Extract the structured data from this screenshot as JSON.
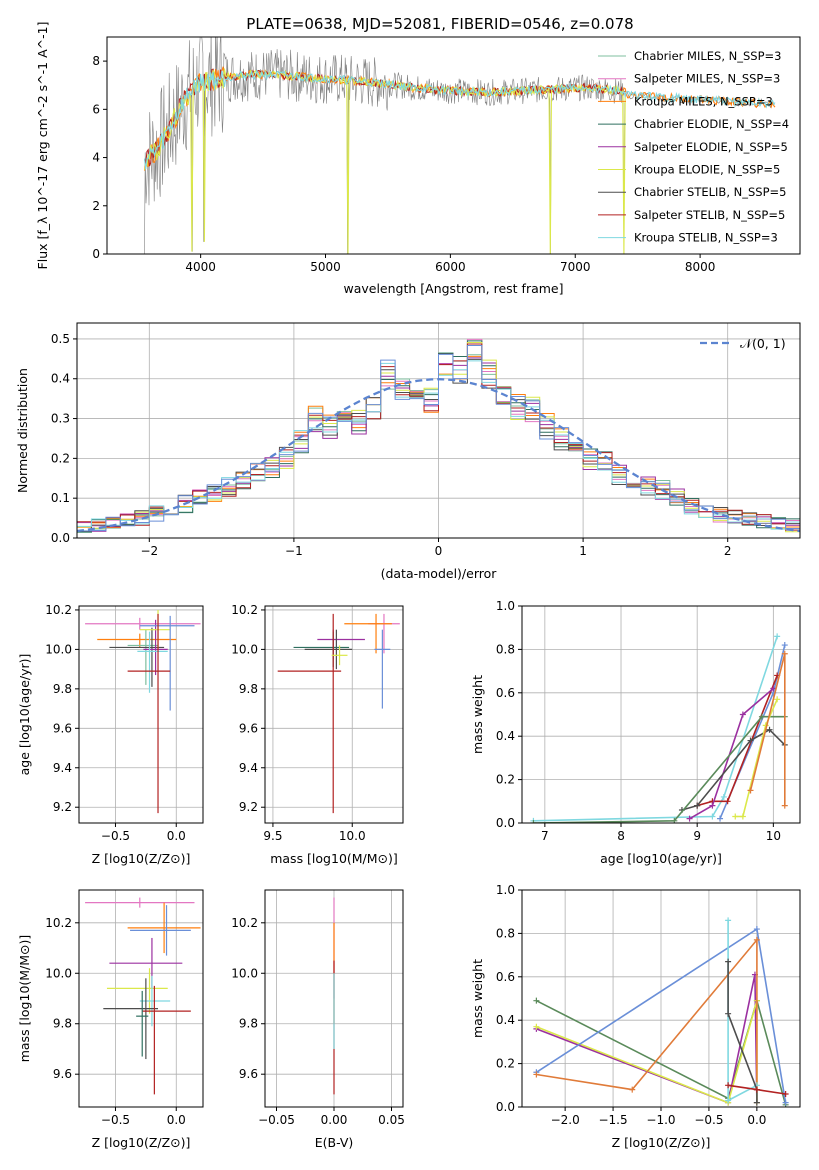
{
  "figure_title": "PLATE=0638, MJD=52081, FIBERID=0546, z=0.078",
  "colors": {
    "Chabrier MILES": "#7fbf9f",
    "Salpeter MILES": "#e377c2",
    "Kroupa MILES": "#ff7f0e",
    "Chabrier ELODIE": "#2f6f5f",
    "Salpeter ELODIE": "#9b30a0",
    "Kroupa ELODIE": "#dbe84a",
    "Chabrier STELIB": "#4d4d4d",
    "Salpeter STELIB": "#b22222",
    "Kroupa STELIB": "#7fd8e0",
    "Blue model": "#6a8fd8",
    "Orange model": "#e07b39",
    "Green model": "#5a8a5a",
    "data": "#808080"
  },
  "chart_data": [
    {
      "id": "spectrum",
      "type": "line",
      "title": "PLATE=0638, MJD=52081, FIBERID=0546, z=0.078",
      "xlabel": "wavelength [Angstrom, rest frame]",
      "ylabel": "Flux [f_λ 10^-17 erg cm^-2 s^-1 A^-1]",
      "xlim": [
        3250,
        8800
      ],
      "ylim": [
        0,
        9
      ],
      "xticks": [
        4000,
        5000,
        6000,
        7000,
        8000
      ],
      "yticks": [
        0,
        2,
        4,
        6,
        8
      ],
      "grid": false,
      "legend_position": "top-right",
      "legend": [
        "Chabrier MILES, N_SSP=3",
        "Salpeter MILES, N_SSP=3",
        "Kroupa MILES, N_SSP=3",
        "Chabrier ELODIE, N_SSP=4",
        "Salpeter ELODIE, N_SSP=5",
        "Kroupa ELODIE, N_SSP=5",
        "Chabrier STELIB, N_SSP=5",
        "Salpeter STELIB, N_SSP=5",
        "Kroupa STELIB, N_SSP=3"
      ],
      "model_continuum": {
        "x": [
          3550,
          3650,
          3750,
          3850,
          3950,
          4050,
          4150,
          4300,
          4500,
          4700,
          4900,
          5100,
          5300,
          5500,
          5700,
          5900,
          6100,
          6300,
          6500,
          6700,
          6900,
          7100,
          7300,
          7400
        ],
        "y": [
          3.9,
          4.3,
          5.2,
          6.2,
          7.0,
          7.2,
          7.3,
          7.4,
          7.45,
          7.4,
          7.3,
          7.25,
          7.15,
          7.05,
          6.9,
          6.8,
          6.75,
          6.7,
          6.75,
          6.8,
          6.85,
          6.9,
          6.8,
          6.7
        ]
      },
      "kroupa_miles_ext": {
        "x": [
          7400,
          7600,
          7800,
          8000,
          8200,
          8400,
          8600
        ],
        "y": [
          6.6,
          6.5,
          6.45,
          6.4,
          6.35,
          6.3,
          6.2
        ]
      },
      "absorption_dips": [
        {
          "x": 3934,
          "depth": 0.1
        },
        {
          "x": 4026,
          "depth": 0.5
        },
        {
          "x": 5176,
          "depth": 0.0
        },
        {
          "x": 6800,
          "depth": 0.0
        },
        {
          "x": 7390,
          "depth": 0.0
        }
      ]
    },
    {
      "id": "residuals",
      "type": "line",
      "xlabel": "(data-model)/error",
      "ylabel": "Normed distribution",
      "xlim": [
        -2.5,
        2.5
      ],
      "ylim": [
        0,
        0.54
      ],
      "xticks": [
        -2,
        -1,
        0,
        1,
        2
      ],
      "yticks": [
        0.0,
        0.1,
        0.2,
        0.3,
        0.4,
        0.5
      ],
      "grid": true,
      "legend_position": "top-right",
      "legend": [
        "𝒩(0, 1)"
      ],
      "bins": [
        -2.5,
        -2.4,
        -2.3,
        -2.2,
        -2.1,
        -2.0,
        -1.9,
        -1.8,
        -1.7,
        -1.6,
        -1.5,
        -1.4,
        -1.3,
        -1.2,
        -1.1,
        -1.0,
        -0.9,
        -0.8,
        -0.7,
        -0.6,
        -0.5,
        -0.4,
        -0.3,
        -0.2,
        -0.1,
        0.0,
        0.1,
        0.2,
        0.3,
        0.4,
        0.5,
        0.6,
        0.7,
        0.8,
        0.9,
        1.0,
        1.1,
        1.2,
        1.3,
        1.4,
        1.5,
        1.6,
        1.7,
        1.8,
        1.9,
        2.0,
        2.1,
        2.2,
        2.3,
        2.4,
        2.5
      ],
      "hist_base": [
        0.025,
        0.03,
        0.04,
        0.045,
        0.05,
        0.06,
        0.07,
        0.085,
        0.1,
        0.11,
        0.13,
        0.15,
        0.17,
        0.18,
        0.2,
        0.24,
        0.3,
        0.28,
        0.3,
        0.29,
        0.33,
        0.41,
        0.38,
        0.37,
        0.35,
        0.43,
        0.42,
        0.46,
        0.41,
        0.37,
        0.33,
        0.32,
        0.28,
        0.25,
        0.22,
        0.2,
        0.19,
        0.16,
        0.14,
        0.13,
        0.12,
        0.1,
        0.08,
        0.07,
        0.06,
        0.05,
        0.045,
        0.04,
        0.035,
        0.03
      ],
      "normal_curve": true
    },
    {
      "id": "age-vs-z",
      "type": "scatter",
      "xlabel": "Z [log10(Z/Z⊙)]",
      "ylabel": "age [log10(age/yr)]",
      "xlim": [
        -0.8,
        0.22
      ],
      "ylim": [
        9.12,
        10.22
      ],
      "xticks": [
        -0.5,
        0.0
      ],
      "xticklabels": [
        "−0.5",
        "0.0"
      ],
      "yticks": [
        9.2,
        9.4,
        9.6,
        9.8,
        10.0,
        10.2
      ],
      "grid": true,
      "errorbars": [
        {
          "x": -0.3,
          "y": 10.13,
          "xerr": [
            0.45,
            0.5
          ],
          "yerr": [
            0.03,
            0.03
          ],
          "model": "Salpeter MILES"
        },
        {
          "x": -0.3,
          "y": 10.05,
          "xerr": [
            0.35,
            0.3
          ],
          "yerr": [
            0.04,
            0.03
          ],
          "model": "Kroupa MILES"
        },
        {
          "x": -0.25,
          "y": 10.02,
          "xerr": [
            0.15,
            0.1
          ],
          "yerr": [
            0.2,
            0.08
          ],
          "model": "Chabrier MILES"
        },
        {
          "x": -0.2,
          "y": 10.01,
          "xerr": [
            0.35,
            0.1
          ],
          "yerr": [
            0.2,
            0.1
          ],
          "model": "Chabrier STELIB"
        },
        {
          "x": -0.17,
          "y": 10.0,
          "xerr": [
            0.1,
            0.1
          ],
          "yerr": [
            0.13,
            0.15
          ],
          "model": "Salpeter ELODIE"
        },
        {
          "x": -0.15,
          "y": 10.1,
          "xerr": [
            0.15,
            0.1
          ],
          "yerr": [
            0.1,
            0.1
          ],
          "model": "Kroupa ELODIE"
        },
        {
          "x": -0.22,
          "y": 9.99,
          "xerr": [
            0.1,
            0.15
          ],
          "yerr": [
            0.21,
            0.1
          ],
          "model": "Kroupa STELIB"
        },
        {
          "x": -0.05,
          "y": 10.12,
          "xerr": [
            0.25,
            0.2
          ],
          "yerr": [
            0.43,
            0.05
          ],
          "model": "Blue model"
        },
        {
          "x": -0.15,
          "y": 9.89,
          "xerr": [
            0.25,
            0.1
          ],
          "yerr": [
            0.72,
            0.29
          ],
          "model": "Salpeter STELIB"
        }
      ]
    },
    {
      "id": "age-vs-mass",
      "type": "scatter",
      "xlabel": "mass [log10(M/M⊙)]",
      "xlim": [
        9.45,
        10.32
      ],
      "ylim": [
        9.12,
        10.22
      ],
      "xticks": [
        9.5,
        10.0
      ],
      "yticks": [
        9.2,
        9.4,
        9.6,
        9.8,
        10.0,
        10.2
      ],
      "grid": true,
      "errorbars": [
        {
          "x": 10.2,
          "y": 10.13,
          "xerr": [
            0.1,
            0.1
          ],
          "yerr": [
            0.15,
            0.05
          ],
          "model": "Salpeter MILES"
        },
        {
          "x": 10.15,
          "y": 10.13,
          "xerr": [
            0.2,
            0.1
          ],
          "yerr": [
            0.15,
            0.05
          ],
          "model": "Kroupa MILES"
        },
        {
          "x": 9.88,
          "y": 10.05,
          "xerr": [
            0.1,
            0.2
          ],
          "yerr": [
            0.1,
            0.05
          ],
          "model": "Salpeter ELODIE"
        },
        {
          "x": 9.9,
          "y": 10.0,
          "xerr": [
            0.2,
            0.1
          ],
          "yerr": [
            0.1,
            0.1
          ],
          "model": "Chabrier STELIB"
        },
        {
          "x": 9.88,
          "y": 10.01,
          "xerr": [
            0.25,
            0.1
          ],
          "yerr": [
            0.1,
            0.08
          ],
          "model": "Chabrier ELODIE"
        },
        {
          "x": 9.88,
          "y": 9.89,
          "xerr": [
            0.35,
            0.05
          ],
          "yerr": [
            0.72,
            0.29
          ],
          "model": "Salpeter STELIB"
        },
        {
          "x": 10.19,
          "y": 10.0,
          "xerr": [
            0.05,
            0.05
          ],
          "yerr": [
            0.3,
            0.1
          ],
          "model": "Blue model"
        },
        {
          "x": 9.92,
          "y": 9.97,
          "xerr": [
            0.05,
            0.05
          ],
          "yerr": [
            0.05,
            0.05
          ],
          "model": "Kroupa ELODIE"
        }
      ]
    },
    {
      "id": "weight-vs-age",
      "type": "line",
      "xlabel": "age [log10(age/yr)]",
      "ylabel": "mass weight",
      "xlim": [
        6.7,
        10.35
      ],
      "ylim": [
        0,
        1
      ],
      "xticks": [
        7,
        8,
        9,
        10
      ],
      "yticks": [
        0.0,
        0.2,
        0.4,
        0.6,
        0.8,
        1.0
      ],
      "grid": true,
      "series": [
        {
          "model": "Kroupa STELIB",
          "x": [
            6.85,
            9.2,
            9.35,
            10.05
          ],
          "y": [
            0.01,
            0.03,
            0.12,
            0.86
          ]
        },
        {
          "model": "Blue model",
          "x": [
            9.3,
            10.0,
            10.15
          ],
          "y": [
            0.02,
            0.6,
            0.82
          ]
        },
        {
          "model": "Salpeter STELIB",
          "x": [
            9.0,
            9.2,
            9.4,
            10.05
          ],
          "y": [
            0.08,
            0.1,
            0.1,
            0.68
          ]
        },
        {
          "model": "Salpeter ELODIE",
          "x": [
            8.9,
            9.2,
            9.6,
            10.0
          ],
          "y": [
            0.02,
            0.08,
            0.5,
            0.62
          ]
        },
        {
          "model": "Chabrier STELIB",
          "x": [
            8.8,
            9.0,
            9.7,
            9.95,
            10.15
          ],
          "y": [
            0.06,
            0.08,
            0.38,
            0.43,
            0.36
          ]
        },
        {
          "model": "Green model",
          "x": [
            6.85,
            8.7,
            9.85,
            10.15
          ],
          "y": [
            0.0,
            0.01,
            0.49,
            0.49
          ]
        },
        {
          "model": "Kroupa ELODIE",
          "x": [
            9.5,
            9.6,
            9.9,
            10.05
          ],
          "y": [
            0.03,
            0.03,
            0.45,
            0.57
          ]
        },
        {
          "model": "Orange model",
          "x": [
            9.7,
            9.7,
            10.15,
            10.15
          ],
          "y": [
            0.15,
            0.15,
            0.78,
            0.08
          ]
        }
      ]
    },
    {
      "id": "mass-vs-z",
      "type": "scatter",
      "xlabel": "Z [log10(Z/Z⊙)]",
      "ylabel": "mass [log10(M/M⊙)]",
      "xlim": [
        -0.8,
        0.22
      ],
      "ylim": [
        9.47,
        10.33
      ],
      "xticks": [
        -0.5,
        0.0
      ],
      "xticklabels": [
        "−0.5",
        "0.0"
      ],
      "yticks": [
        9.6,
        9.8,
        10.0,
        10.2
      ],
      "grid": true,
      "errorbars": [
        {
          "x": -0.3,
          "y": 10.28,
          "xerr": [
            0.45,
            0.45
          ],
          "yerr": [
            0.02,
            0.02
          ],
          "model": "Salpeter MILES"
        },
        {
          "x": -0.1,
          "y": 10.18,
          "xerr": [
            0.3,
            0.3
          ],
          "yerr": [
            0.1,
            0.1
          ],
          "model": "Kroupa MILES"
        },
        {
          "x": -0.2,
          "y": 10.04,
          "xerr": [
            0.35,
            0.25
          ],
          "yerr": [
            0.1,
            0.1
          ],
          "model": "Salpeter ELODIE"
        },
        {
          "x": -0.22,
          "y": 9.94,
          "xerr": [
            0.35,
            0.15
          ],
          "yerr": [
            0.1,
            0.08
          ],
          "model": "Kroupa ELODIE"
        },
        {
          "x": -0.2,
          "y": 9.89,
          "xerr": [
            0.1,
            0.15
          ],
          "yerr": [
            0.1,
            0.1
          ],
          "model": "Kroupa STELIB"
        },
        {
          "x": -0.25,
          "y": 9.86,
          "xerr": [
            0.35,
            0.1
          ],
          "yerr": [
            0.2,
            0.12
          ],
          "model": "Chabrier STELIB"
        },
        {
          "x": -0.18,
          "y": 9.85,
          "xerr": [
            0.1,
            0.3
          ],
          "yerr": [
            0.33,
            0.1
          ],
          "model": "Salpeter STELIB"
        },
        {
          "x": -0.28,
          "y": 9.83,
          "xerr": [
            0.05,
            0.05
          ],
          "yerr": [
            0.16,
            0.1
          ],
          "model": "Chabrier ELODIE"
        },
        {
          "x": -0.08,
          "y": 10.17,
          "xerr": [
            0.3,
            0.2
          ],
          "yerr": [
            0.1,
            0.1
          ],
          "model": "Blue model"
        }
      ]
    },
    {
      "id": "mass-vs-ebv",
      "type": "scatter",
      "xlabel": "E(B-V)",
      "xlim": [
        -0.06,
        0.06
      ],
      "ylim": [
        9.47,
        10.33
      ],
      "xticks": [
        -0.05,
        0.0,
        0.05
      ],
      "xticklabels": [
        "−0.05",
        "0.00",
        "0.05"
      ],
      "yticks": [
        9.6,
        9.8,
        10.0,
        10.2
      ],
      "grid": true,
      "errorbars": [
        {
          "x": 0.0,
          "y": 10.1,
          "xerr": [
            0,
            0
          ],
          "yerr": [
            0.2,
            0.2
          ],
          "model": "Salpeter MILES"
        },
        {
          "x": 0.0,
          "y": 10.0,
          "xerr": [
            0,
            0
          ],
          "yerr": [
            0.2,
            0.2
          ],
          "model": "Kroupa MILES"
        },
        {
          "x": 0.0,
          "y": 9.85,
          "xerr": [
            0,
            0
          ],
          "yerr": [
            0.33,
            0.2
          ],
          "model": "Salpeter STELIB"
        },
        {
          "x": 0.0,
          "y": 9.9,
          "xerr": [
            0,
            0
          ],
          "yerr": [
            0.2,
            0.1
          ],
          "model": "Kroupa STELIB"
        }
      ]
    },
    {
      "id": "weight-vs-z",
      "type": "line",
      "xlabel": "Z [log10(Z/Z⊙)]",
      "ylabel": "mass weight",
      "xlim": [
        -2.45,
        0.45
      ],
      "ylim": [
        0,
        1
      ],
      "xticks": [
        -2.0,
        -1.5,
        -1.0,
        -0.5,
        0.0
      ],
      "xticklabels": [
        "−2.0",
        "−1.5",
        "−1.0",
        "−0.5",
        "0.0"
      ],
      "yticks": [
        0.0,
        0.2,
        0.4,
        0.6,
        0.8,
        1.0
      ],
      "grid": true,
      "series": [
        {
          "model": "Green model",
          "x": [
            -2.3,
            -0.3,
            0.0,
            0.3
          ],
          "y": [
            0.49,
            0.04,
            0.49,
            0.01
          ]
        },
        {
          "model": "Salpeter ELODIE",
          "x": [
            -2.3,
            -0.3,
            -0.02,
            0.0
          ],
          "y": [
            0.36,
            0.02,
            0.61,
            0.02
          ]
        },
        {
          "model": "Kroupa ELODIE",
          "x": [
            -2.3,
            -0.3,
            0.0,
            0.0
          ],
          "y": [
            0.37,
            0.02,
            0.49,
            0.02
          ]
        },
        {
          "model": "Blue model",
          "x": [
            -2.3,
            0.0,
            0.3
          ],
          "y": [
            0.16,
            0.82,
            0.02
          ]
        },
        {
          "model": "Orange model",
          "x": [
            -2.3,
            -1.3,
            0.0,
            0.0
          ],
          "y": [
            0.15,
            0.08,
            0.77,
            0.08
          ]
        },
        {
          "model": "Kroupa STELIB",
          "x": [
            -0.3,
            -0.3,
            0.0
          ],
          "y": [
            0.86,
            0.03,
            0.1
          ]
        },
        {
          "model": "Chabrier STELIB",
          "x": [
            -0.3,
            -0.3,
            0.0,
            0.0
          ],
          "y": [
            0.67,
            0.43,
            0.08,
            0.02
          ]
        },
        {
          "model": "Salpeter STELIB",
          "x": [
            -0.3,
            0.0,
            0.3
          ],
          "y": [
            0.1,
            0.08,
            0.06
          ]
        }
      ]
    }
  ]
}
